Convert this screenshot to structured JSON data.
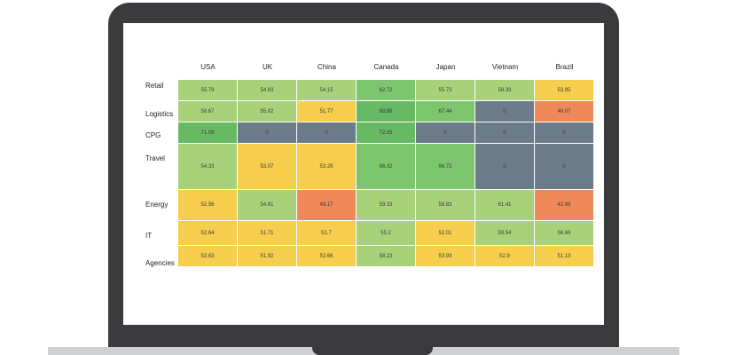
{
  "chart_data": {
    "type": "heatmap",
    "columns": [
      "USA",
      "UK",
      "China",
      "Canada",
      "Japan",
      "Vietnam",
      "Brazil"
    ],
    "rows": [
      "Retail",
      "Logistics",
      "CPG",
      "Travel",
      "Energy",
      "IT",
      "Agencies"
    ],
    "values": [
      [
        55.79,
        54.83,
        54.15,
        62.72,
        55.73,
        58.39,
        53.95
      ],
      [
        58.67,
        55.82,
        51.77,
        68.86,
        67.44,
        0,
        46.07
      ],
      [
        71.09,
        0,
        0,
        72.05,
        0,
        0,
        0
      ],
      [
        54.33,
        53.07,
        53.29,
        66.32,
        66.72,
        0,
        0
      ],
      [
        52.56,
        54.61,
        49.17,
        59.33,
        58.83,
        61.41,
        42.66
      ],
      [
        52.64,
        51.71,
        51.7,
        55.2,
        52.01,
        59.54,
        56.69
      ],
      [
        52.63,
        51.92,
        52.66,
        58.23,
        53.93,
        52.9,
        51.13
      ]
    ],
    "row_heights_relative": [
      1,
      1,
      1,
      2.15,
      1.45,
      1.15,
      1
    ],
    "color_scale": {
      "zero": "#6b7b8a",
      "below_50": "#f0895a",
      "50_to_54": "#f6cd4c",
      "54_to_62": "#a8d27a",
      "62_to_68": "#7dc66e",
      "above_68": "#67ba63"
    }
  }
}
